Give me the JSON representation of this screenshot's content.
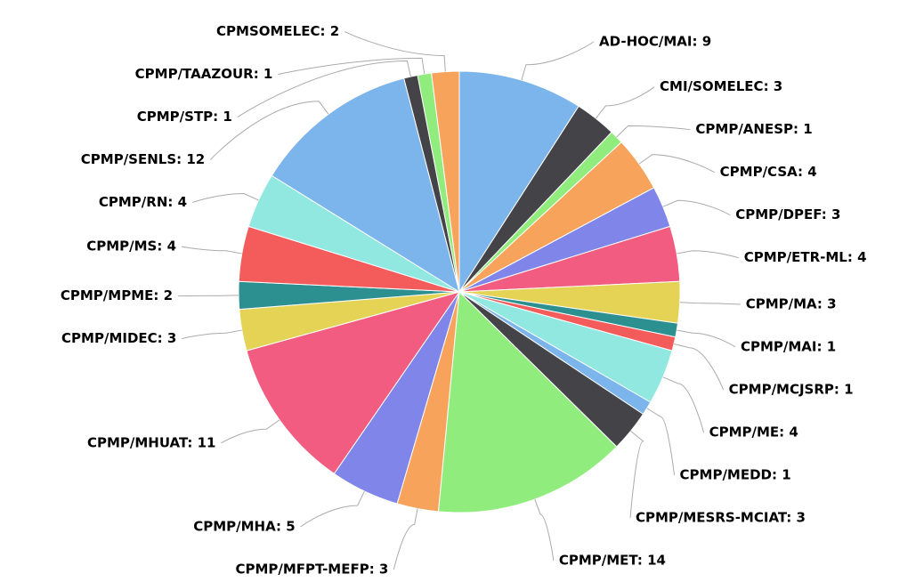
{
  "chart_data": {
    "type": "pie",
    "values": [
      9,
      3,
      1,
      4,
      3,
      4,
      3,
      1,
      1,
      4,
      1,
      3,
      14,
      3,
      5,
      11,
      3,
      2,
      4,
      4,
      12,
      1,
      1,
      2
    ],
    "value_labels": [
      "AD-HOC/MAI: 9",
      "CMI/SOMELEC: 3",
      "CPMP/ANESP: 1",
      "CPMP/CSA: 4",
      "CPMP/DPEF: 3",
      "CPMP/ETR-ML: 4",
      "CPMP/MA: 3",
      "CPMP/MAI: 1",
      "CPMP/MCJSRP: 1",
      "CPMP/ME: 4",
      "CPMP/MEDD: 1",
      "CPMP/MESRS-MCIAT: 3",
      "CPMP/MET: 14",
      "CPMP/MFPT-MEFP: 3",
      "CPMP/MHA: 5",
      "CPMP/MHUAT: 11",
      "CPMP/MIDEC: 3",
      "CPMP/MPME: 2",
      "CPMP/MS: 4",
      "CPMP/RN: 4",
      "CPMP/SENLS: 12",
      "CPMP/STP: 1",
      "CPMP/TAAZOUR: 1",
      "CPMSOMELEC: 2"
    ],
    "colors": [
      "#7cb5ec",
      "#434348",
      "#90ed7d",
      "#f7a35c",
      "#8085e9",
      "#f15c80",
      "#e4d354",
      "#2b908f",
      "#f45b5b",
      "#91e8e1"
    ]
  }
}
